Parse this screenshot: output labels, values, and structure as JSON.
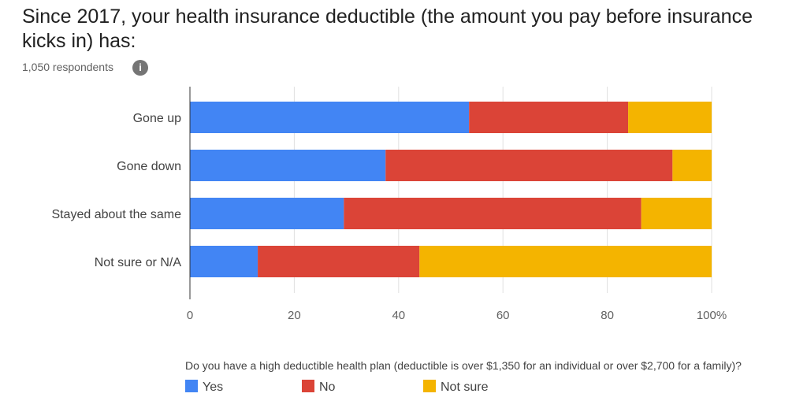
{
  "title": "Since 2017, your health insurance deductible (the amount you pay before insurance kicks in) has:",
  "respondents": "1,050 respondents",
  "info_icon": "info-icon",
  "legend_title": "Do you have a high deductible health plan (deductible is over $1,350 for an individual or over $2,700 for a family)?",
  "chart_data": {
    "type": "bar",
    "orientation": "horizontal",
    "stacked": true,
    "categories": [
      "Gone up",
      "Gone down",
      "Stayed about the same",
      "Not sure or N/A"
    ],
    "series": [
      {
        "name": "Yes",
        "color": "#4285f4",
        "values": [
          53.5,
          37.5,
          29.5,
          13.0
        ]
      },
      {
        "name": "No",
        "color": "#db4437",
        "values": [
          30.5,
          55.0,
          57.0,
          31.0
        ]
      },
      {
        "name": "Not sure",
        "color": "#f4b400",
        "values": [
          16.0,
          7.5,
          13.5,
          56.0
        ]
      }
    ],
    "xlim": [
      0,
      100
    ],
    "x_ticks": [
      "0",
      "20",
      "40",
      "60",
      "80",
      "100%"
    ],
    "grid": true,
    "legend_position": "bottom"
  }
}
